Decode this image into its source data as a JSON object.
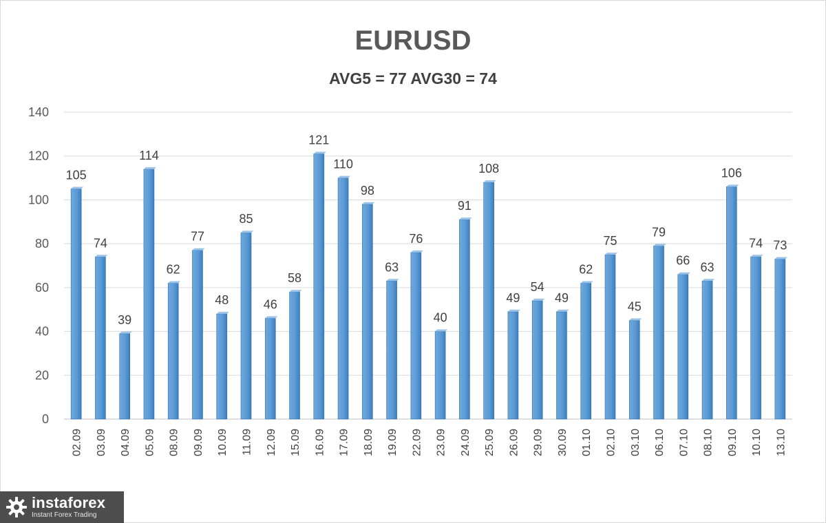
{
  "chart_data": {
    "type": "bar",
    "title": "EURUSD",
    "subtitle": "AVG5 = 77 AVG30 = 74",
    "xlabel": "",
    "ylabel": "",
    "ylim": [
      0,
      140
    ],
    "yticks": [
      0,
      20,
      40,
      60,
      80,
      100,
      120,
      140
    ],
    "grid": true,
    "legend": "none",
    "bar_color": "#5b9bd5",
    "categories": [
      "02.09",
      "03.09",
      "04.09",
      "05.09",
      "08.09",
      "09.09",
      "10.09",
      "11.09",
      "12.09",
      "15.09",
      "16.09",
      "17.09",
      "18.09",
      "19.09",
      "22.09",
      "23.09",
      "24.09",
      "25.09",
      "26.09",
      "29.09",
      "30.09",
      "01.10",
      "02.10",
      "03.10",
      "06.10",
      "07.10",
      "08.10",
      "09.10",
      "10.10",
      "13.10"
    ],
    "values": [
      105,
      74,
      39,
      114,
      62,
      77,
      48,
      85,
      46,
      58,
      121,
      110,
      98,
      63,
      76,
      40,
      91,
      108,
      49,
      54,
      49,
      62,
      75,
      45,
      79,
      66,
      63,
      106,
      74,
      73
    ]
  },
  "logo": {
    "brand": "instaforex",
    "tagline": "Instant Forex Trading",
    "icon": "gear-logo-icon"
  }
}
